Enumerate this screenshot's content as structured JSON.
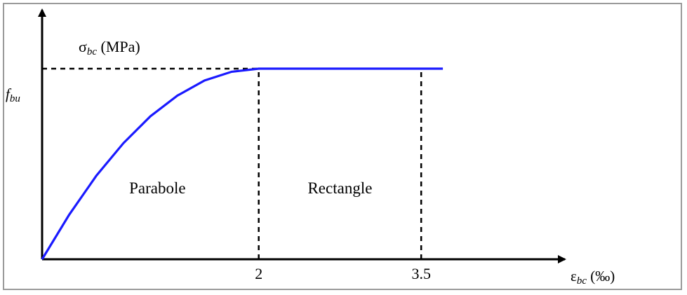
{
  "chart_data": {
    "type": "line",
    "y_axis": {
      "symbol": "σ",
      "subscript": "bc",
      "unit": "(MPa)"
    },
    "x_axis": {
      "symbol": "ε",
      "subscript": "bc",
      "unit": "(‰)"
    },
    "y_level_label": {
      "symbol": "f",
      "subscript": "bu"
    },
    "x_ticks": [
      {
        "value": 2,
        "label": "2"
      },
      {
        "value": 3.5,
        "label": "3.5"
      }
    ],
    "xlim": [
      0,
      4.6
    ],
    "ylim": [
      0,
      1.0
    ],
    "series": [
      {
        "color": "#1a1aff",
        "curve": "parabola",
        "points": [
          [
            0,
            0
          ],
          [
            0.25,
            0.234
          ],
          [
            0.5,
            0.438
          ],
          [
            0.75,
            0.609
          ],
          [
            1.0,
            0.75
          ],
          [
            1.25,
            0.859
          ],
          [
            1.5,
            0.938
          ],
          [
            1.75,
            0.984
          ],
          [
            2.0,
            1.0
          ],
          [
            3.5,
            1.0
          ],
          [
            3.7,
            1.0
          ]
        ]
      }
    ],
    "regions": [
      {
        "label": "Parabole",
        "x_from": 0,
        "x_to": 2
      },
      {
        "label": "Rectangle",
        "x_from": 2,
        "x_to": 3.5
      }
    ],
    "dashed_guides": [
      {
        "kind": "horizontal",
        "y": 1.0,
        "x_from": 0,
        "x_to": 2
      },
      {
        "kind": "vertical",
        "x": 2,
        "y_from": 0,
        "y_to": 1.0
      },
      {
        "kind": "vertical",
        "x": 3.5,
        "y_from": 0,
        "y_to": 1.0
      }
    ],
    "grid": false,
    "legend": "none"
  }
}
